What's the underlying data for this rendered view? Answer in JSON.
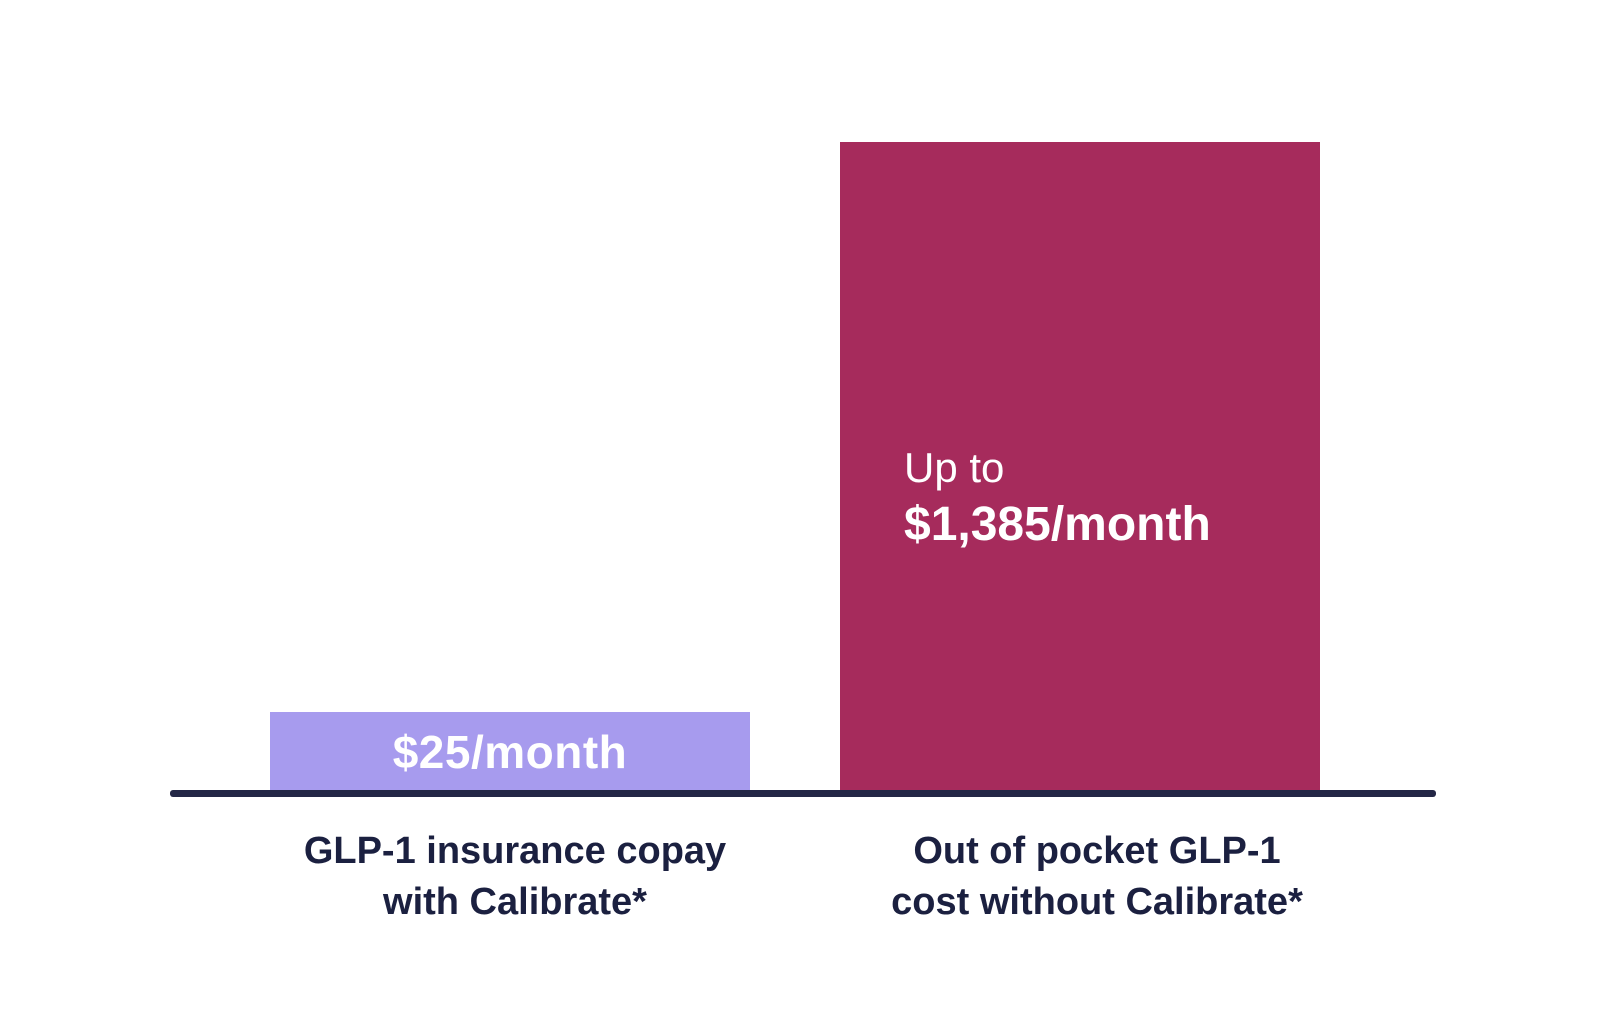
{
  "chart_data": {
    "type": "bar",
    "title": "",
    "categories": [
      "GLP-1 insurance copay with Calibrate*",
      "Out of pocket GLP-1 cost without Calibrate*"
    ],
    "values": [
      25,
      1385
    ],
    "value_labels": [
      "$25/month",
      "Up to $1,385/month"
    ],
    "value_unit": "USD per month",
    "ylim": [
      0,
      1385
    ],
    "grid": false,
    "legend": "none",
    "axes": "x-axis baseline only, no y-axis, no tick marks",
    "note": "bar heights not drawn to numeric scale in source graphic",
    "colors": {
      "bar_with_calibrate": "#A79BEE",
      "bar_without_calibrate": "#A62B5C",
      "axis_line": "#232746",
      "category_text": "#1B2040",
      "bar_value_text": "#FFFFFF",
      "background": "#FFFFFF"
    }
  },
  "labels": {
    "left_bar_value": "$25/month",
    "right_bar_prefix": "Up to",
    "right_bar_value": "$1,385/month",
    "left_category_line1": "GLP-1 insurance copay",
    "left_category_line2": "with Calibrate*",
    "right_category_line1": "Out of pocket GLP-1",
    "right_category_line2": "cost without Calibrate*"
  }
}
